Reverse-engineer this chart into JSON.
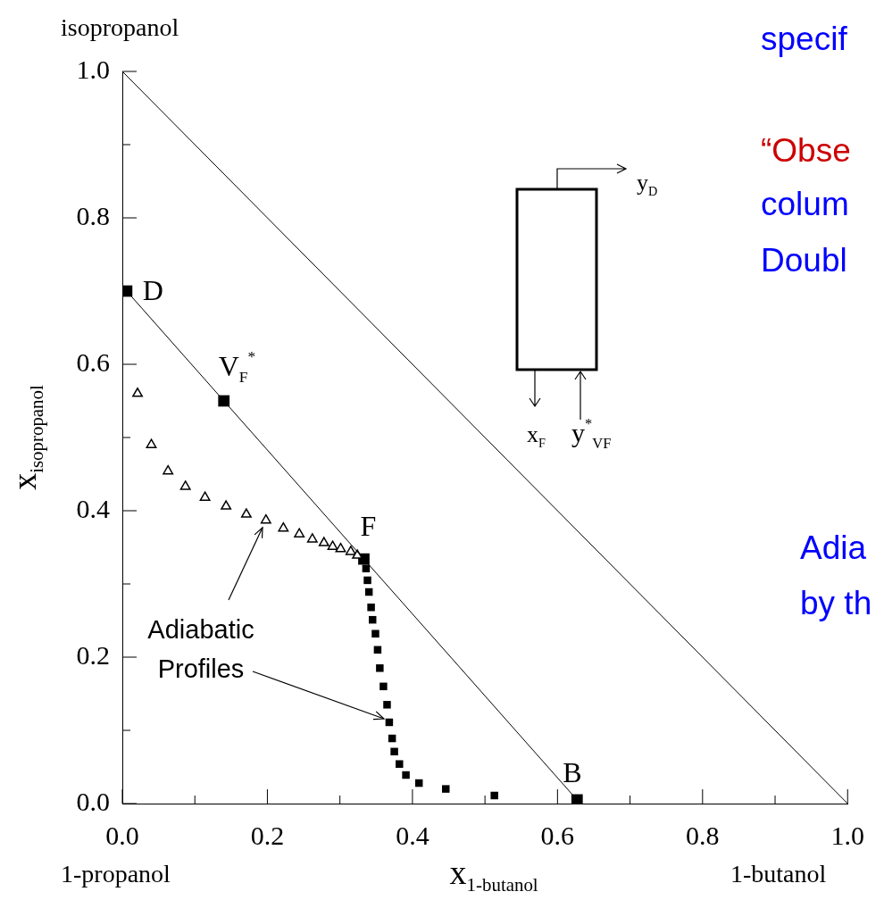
{
  "chart_data": {
    "type": "scatter",
    "xlabel": "x$_{1-butanol}$",
    "ylabel": "x$_{isopropanol}$",
    "xlim": [
      0,
      1
    ],
    "ylim": [
      0,
      1
    ],
    "xticks": [
      {
        "value": 0,
        "label": "0.0"
      },
      {
        "value": 0.1,
        "label": null
      },
      {
        "value": 0.2,
        "label": "0.2"
      },
      {
        "value": 0.3,
        "label": null
      },
      {
        "value": 0.4,
        "label": "0.4"
      },
      {
        "value": 0.5,
        "label": null
      },
      {
        "value": 0.6,
        "label": "0.6"
      },
      {
        "value": 0.7,
        "label": null
      },
      {
        "value": 0.8,
        "label": "0.8"
      },
      {
        "value": 0.9,
        "label": null
      },
      {
        "value": 1,
        "label": "1.0"
      }
    ],
    "yticks": [
      {
        "value": 0,
        "label": "0.0"
      },
      {
        "value": 0.1,
        "label": null
      },
      {
        "value": 0.2,
        "label": "0.2"
      },
      {
        "value": 0.3,
        "label": null
      },
      {
        "value": 0.4,
        "label": "0.4"
      },
      {
        "value": 0.5,
        "label": null
      },
      {
        "value": 0.6,
        "label": "0.6"
      },
      {
        "value": 0.7,
        "label": null
      },
      {
        "value": 0.8,
        "label": "0.8"
      },
      {
        "value": 0.9,
        "label": null
      },
      {
        "value": 1,
        "label": "1.0"
      }
    ],
    "grid": false,
    "legend": false,
    "series": [
      {
        "type": "line",
        "color": "#000000",
        "marker": "none",
        "x": [
          0,
          1
        ],
        "values": [
          1,
          0
        ]
      },
      {
        "type": "line",
        "color": "#000000",
        "marker": "none",
        "x": [
          0.006,
          0.14,
          0.333,
          0.627
        ],
        "values": [
          0.7,
          0.55,
          0.334,
          0.005
        ]
      },
      {
        "type": "scatter",
        "color": "#000000",
        "marker": "triangle",
        "x": [
          0.021,
          0.04,
          0.063,
          0.087,
          0.114,
          0.143,
          0.171,
          0.198,
          0.222,
          0.244,
          0.262,
          0.278,
          0.29,
          0.301,
          0.315,
          0.324
        ],
        "values": [
          0.56,
          0.49,
          0.454,
          0.433,
          0.418,
          0.406,
          0.395,
          0.387,
          0.376,
          0.368,
          0.361,
          0.356,
          0.351,
          0.348,
          0.344,
          0.339
        ]
      },
      {
        "type": "scatter",
        "color": "#000000",
        "marker": "square",
        "x": [
          0.336,
          0.338,
          0.34,
          0.343,
          0.345,
          0.349,
          0.352,
          0.355,
          0.36,
          0.365,
          0.368,
          0.372,
          0.375,
          0.382,
          0.391,
          0.409,
          0.446,
          0.513
        ],
        "values": [
          0.321,
          0.305,
          0.289,
          0.268,
          0.251,
          0.232,
          0.21,
          0.185,
          0.16,
          0.135,
          0.111,
          0.089,
          0.071,
          0.054,
          0.039,
          0.028,
          0.02,
          0.011
        ]
      },
      {
        "type": "scatter",
        "color": "#000000",
        "marker": "square",
        "x": [
          0.006,
          0.14,
          0.333,
          0.627
        ],
        "values": [
          0.7,
          0.55,
          0.334,
          0.005
        ]
      }
    ],
    "annotations": [
      {
        "text": "D",
        "x": 0.006,
        "y": 0.7
      },
      {
        "text": "V$_{F}$$^{*}$",
        "x": 0.14,
        "y": 0.55
      },
      {
        "text": "F",
        "x": 0.333,
        "y": 0.334
      },
      {
        "text": "B",
        "x": 0.627,
        "y": 0.005
      },
      "isopropanol",
      "1-propanol",
      "1-butanol",
      {
        "text": "Adiabatic Profiles",
        "x": 0.198,
        "y": 0.387
      },
      "y$_{D}$",
      "x$_{F}$",
      "y$^{*}$$_{VF}$",
      "specif",
      "“Obse",
      "colum",
      "Doubl",
      "Adia",
      "by th"
    ]
  }
}
